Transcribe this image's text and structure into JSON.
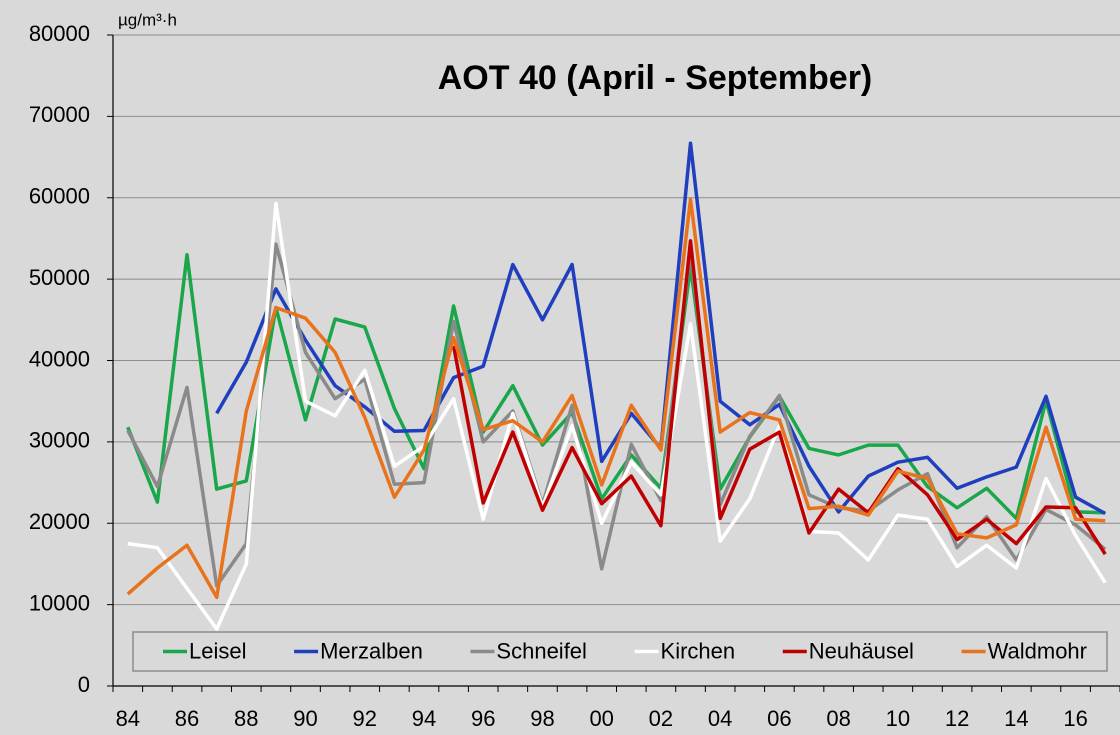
{
  "chart_data": {
    "type": "line",
    "title": "AOT 40 (April - September)",
    "y_unit": "µg/m³·h",
    "categories": [
      "84",
      null,
      "86",
      null,
      "88",
      null,
      "90",
      null,
      "92",
      null,
      "94",
      null,
      "96",
      null,
      "98",
      null,
      "00",
      null,
      "02",
      null,
      "04",
      null,
      "06",
      null,
      "08",
      null,
      "10",
      null,
      "12",
      null,
      "14",
      null,
      "16",
      null
    ],
    "ylim": [
      0,
      80000
    ],
    "yticks": [
      0,
      10000,
      20000,
      30000,
      40000,
      50000,
      60000,
      70000,
      80000
    ],
    "grid": true,
    "legend": "bottom",
    "series": [
      {
        "name": "Leisel",
        "color": "#1aa64a",
        "values": [
          31800,
          22600,
          53000,
          24200,
          25200,
          46500,
          32700,
          45100,
          44100,
          34100,
          26700,
          46700,
          31200,
          36900,
          29600,
          33600,
          23000,
          28400,
          24300,
          51500,
          24200,
          30600,
          35600,
          29200,
          28400,
          29600,
          29600,
          24500,
          21900,
          24300,
          20600,
          35100,
          21400,
          21300
        ]
      },
      {
        "name": "Merzalben",
        "color": "#1f3fbf",
        "values": [
          null,
          null,
          null,
          33500,
          39800,
          48800,
          42500,
          36900,
          34300,
          31300,
          31400,
          37900,
          39300,
          51800,
          45000,
          51800,
          27600,
          33500,
          29200,
          66700,
          35000,
          32100,
          34600,
          27000,
          21400,
          25800,
          27500,
          28100,
          24300,
          25700,
          26900,
          35600,
          23200,
          21200
        ]
      },
      {
        "name": "Schneifel",
        "color": "#8a8a8a",
        "values": [
          31400,
          24500,
          36700,
          12300,
          17500,
          54300,
          41000,
          35300,
          37700,
          24800,
          25000,
          44800,
          30000,
          33800,
          22300,
          34500,
          14400,
          29700,
          22800,
          53500,
          22300,
          30700,
          35700,
          23500,
          21900,
          21500,
          24100,
          26100,
          17000,
          20800,
          15500,
          21700,
          19800,
          16800
        ]
      },
      {
        "name": "Kirchen",
        "color": "#ffffff",
        "values": [
          17500,
          17000,
          12000,
          7000,
          15000,
          59300,
          35000,
          33200,
          38800,
          27000,
          29500,
          35300,
          20500,
          33500,
          22000,
          32000,
          20000,
          27500,
          23500,
          44500,
          17800,
          23000,
          32000,
          19000,
          18800,
          15500,
          21000,
          20500,
          14700,
          17300,
          14500,
          25500,
          18500,
          12700
        ]
      },
      {
        "name": "Neuhäusel",
        "color": "#c00000",
        "values": [
          null,
          null,
          null,
          null,
          null,
          null,
          null,
          null,
          null,
          null,
          null,
          41800,
          22500,
          31200,
          21600,
          29300,
          22400,
          25800,
          19700,
          54700,
          20600,
          29100,
          31200,
          18800,
          24200,
          21300,
          26700,
          23500,
          18000,
          20500,
          17500,
          22000,
          21900,
          16200
        ]
      },
      {
        "name": "Waldmohr",
        "color": "#e8731c",
        "values": [
          11300,
          14500,
          17300,
          10900,
          33800,
          46500,
          45200,
          41000,
          33000,
          23200,
          29000,
          42800,
          31500,
          32600,
          30000,
          35700,
          24700,
          34500,
          29000,
          59800,
          31200,
          33600,
          32700,
          21800,
          22100,
          21000,
          26400,
          25500,
          18700,
          18200,
          19800,
          31800,
          20500,
          20300
        ]
      }
    ]
  }
}
